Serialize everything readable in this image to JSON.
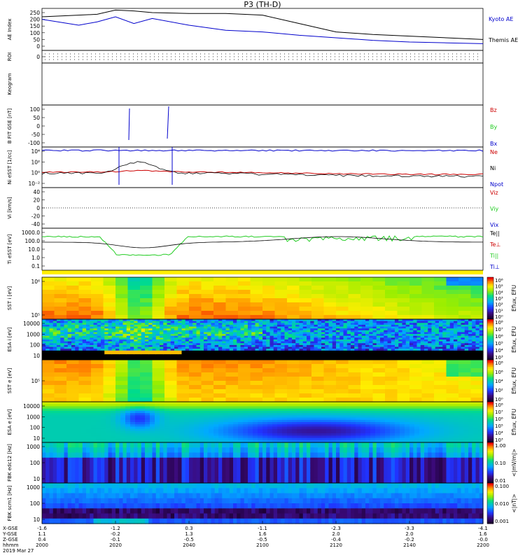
{
  "title": "P3 (TH-D)",
  "chart_data": [
    {
      "type": "line",
      "panel": "ae-index",
      "ylabel": "AE Index",
      "yticks": [
        "250",
        "200",
        "150",
        "100",
        "50",
        "0"
      ],
      "ylim": [
        0,
        250
      ],
      "x": [
        "2000",
        "2010",
        "2015",
        "2020",
        "2025",
        "2030",
        "2040",
        "2050",
        "2100",
        "2110",
        "2120",
        "2130",
        "2140",
        "2150",
        "2200"
      ],
      "series": [
        {
          "name": "Kyoto AE",
          "color": "#0000cc",
          "values": [
            185,
            150,
            170,
            200,
            160,
            190,
            150,
            120,
            110,
            90,
            75,
            60,
            50,
            45,
            40
          ]
        },
        {
          "name": "Themis AE",
          "color": "#000000",
          "values": [
            200,
            210,
            215,
            240,
            235,
            225,
            220,
            220,
            210,
            160,
            110,
            95,
            85,
            75,
            65
          ]
        }
      ]
    },
    {
      "type": "line",
      "panel": "roi",
      "ylabel": "ROI",
      "yticks": [
        "0"
      ],
      "note_rows": 3
    },
    {
      "type": "line",
      "panel": "keogram",
      "ylabel": "Keogram",
      "yticks": []
    },
    {
      "type": "line",
      "panel": "b-field",
      "ylabel": "B FIT GSE [nT]",
      "yticks": [
        "100",
        "50",
        "0",
        "-50",
        "-100"
      ],
      "ylim": [
        -100,
        100
      ],
      "series": [
        {
          "name": "Bz",
          "color": "#cc0000"
        },
        {
          "name": "By",
          "color": "#22cc22"
        },
        {
          "name": "Bx",
          "color": "#0000cc"
        }
      ]
    },
    {
      "type": "line",
      "panel": "density",
      "ylabel": "Ni eSST [1/cc]",
      "yticks": [
        "10⁴",
        "10²",
        "10⁰",
        "10⁻²"
      ],
      "series": [
        {
          "name": "Ne",
          "color": "#cc0000"
        },
        {
          "name": "Ni",
          "color": "#000000"
        },
        {
          "name": "Npot",
          "color": "#0000cc"
        }
      ]
    },
    {
      "type": "line",
      "panel": "velocity",
      "ylabel": "Vi [km/s]",
      "yticks": [
        "40",
        "20",
        "0",
        "-20",
        "-40"
      ],
      "ylim": [
        -50,
        50
      ],
      "series": [
        {
          "name": "Viz",
          "color": "#cc0000"
        },
        {
          "name": "Viy",
          "color": "#22cc22"
        },
        {
          "name": "Vix",
          "color": "#0000cc"
        }
      ]
    },
    {
      "type": "line",
      "panel": "temperature",
      "ylabel": "Ti eSST [eV]",
      "yticks": [
        "1000.0",
        "100.0",
        "10.0",
        "1.0",
        "0.1"
      ],
      "series": [
        {
          "name": "Te||",
          "color": "#000000"
        },
        {
          "name": "Te⊥",
          "color": "#cc0000"
        },
        {
          "name": "Ti||",
          "color": "#22cc22"
        },
        {
          "name": "Ti⊥",
          "color": "#0000cc"
        }
      ]
    },
    {
      "type": "heatmap",
      "panel": "sst-ion",
      "ylabel": "SST i [eV]",
      "yticks": [
        "10⁶",
        "10⁵"
      ],
      "colorbar_label": "Eflux, EFU",
      "colorbar_ticks": [
        "10⁶",
        "10⁵",
        "10⁴",
        "10³",
        "10²",
        "10¹",
        "10⁰"
      ]
    },
    {
      "type": "heatmap",
      "panel": "esa-ion",
      "ylabel": "ESA i [eV]",
      "yticks": [
        "10000",
        "1000",
        "100",
        "10"
      ],
      "colorbar_label": "Eflux, EFU",
      "colorbar_ticks": [
        "10⁸",
        "10⁷",
        "10⁶",
        "10⁵",
        "10⁴",
        "10³"
      ]
    },
    {
      "type": "heatmap",
      "panel": "sst-electron",
      "ylabel": "SST e [eV]",
      "yticks": [
        "10⁵"
      ],
      "colorbar_label": "Eflux, EFU",
      "colorbar_ticks": [
        "10⁸",
        "10⁶",
        "10⁴",
        "10²",
        "10⁰"
      ]
    },
    {
      "type": "heatmap",
      "panel": "esa-electron",
      "ylabel": "ESA e [eV]",
      "yticks": [
        "10000",
        "1000",
        "100",
        "10"
      ],
      "colorbar_label": "Eflux, EFU",
      "colorbar_ticks": [
        "10⁸",
        "10⁷",
        "10⁶",
        "10⁵",
        "10⁴",
        "10³"
      ]
    },
    {
      "type": "heatmap",
      "panel": "fbk-edc12",
      "ylabel": "FBK edc12 [Hz]",
      "yticks": [
        "1000",
        "100",
        "10"
      ],
      "colorbar_label": "<|mV/m|>",
      "colorbar_ticks": [
        "1.00",
        "0.10",
        "0.01"
      ]
    },
    {
      "type": "heatmap",
      "panel": "fbk-scm1",
      "ylabel": "FBK scm1 [Hz]",
      "yticks": [
        "1000",
        "100",
        "10"
      ],
      "colorbar_label": "<|nT|>",
      "colorbar_ticks": [
        "0.100",
        "0.010",
        "0.001"
      ]
    }
  ],
  "x_axis": {
    "rows": [
      {
        "label": "X-GSE",
        "values": [
          "-1.6",
          "-1.2",
          "0.3",
          "-1.1",
          "-2.3",
          "-3.3",
          "-4.1"
        ]
      },
      {
        "label": "Y-GSE",
        "values": [
          "1.1",
          "-0.2",
          "1.3",
          "1.6",
          "2.0",
          "2.0",
          "1.6"
        ]
      },
      {
        "label": "Z-GSE",
        "values": [
          "0.4",
          "-0.1",
          "-0.5",
          "-0.5",
          "-0.4",
          "-0.2",
          "-0.0"
        ]
      },
      {
        "label": "hhmm",
        "values": [
          "2000",
          "2020",
          "2040",
          "2100",
          "2120",
          "2140",
          "2200"
        ]
      }
    ],
    "date": "2019 Mar 27"
  }
}
